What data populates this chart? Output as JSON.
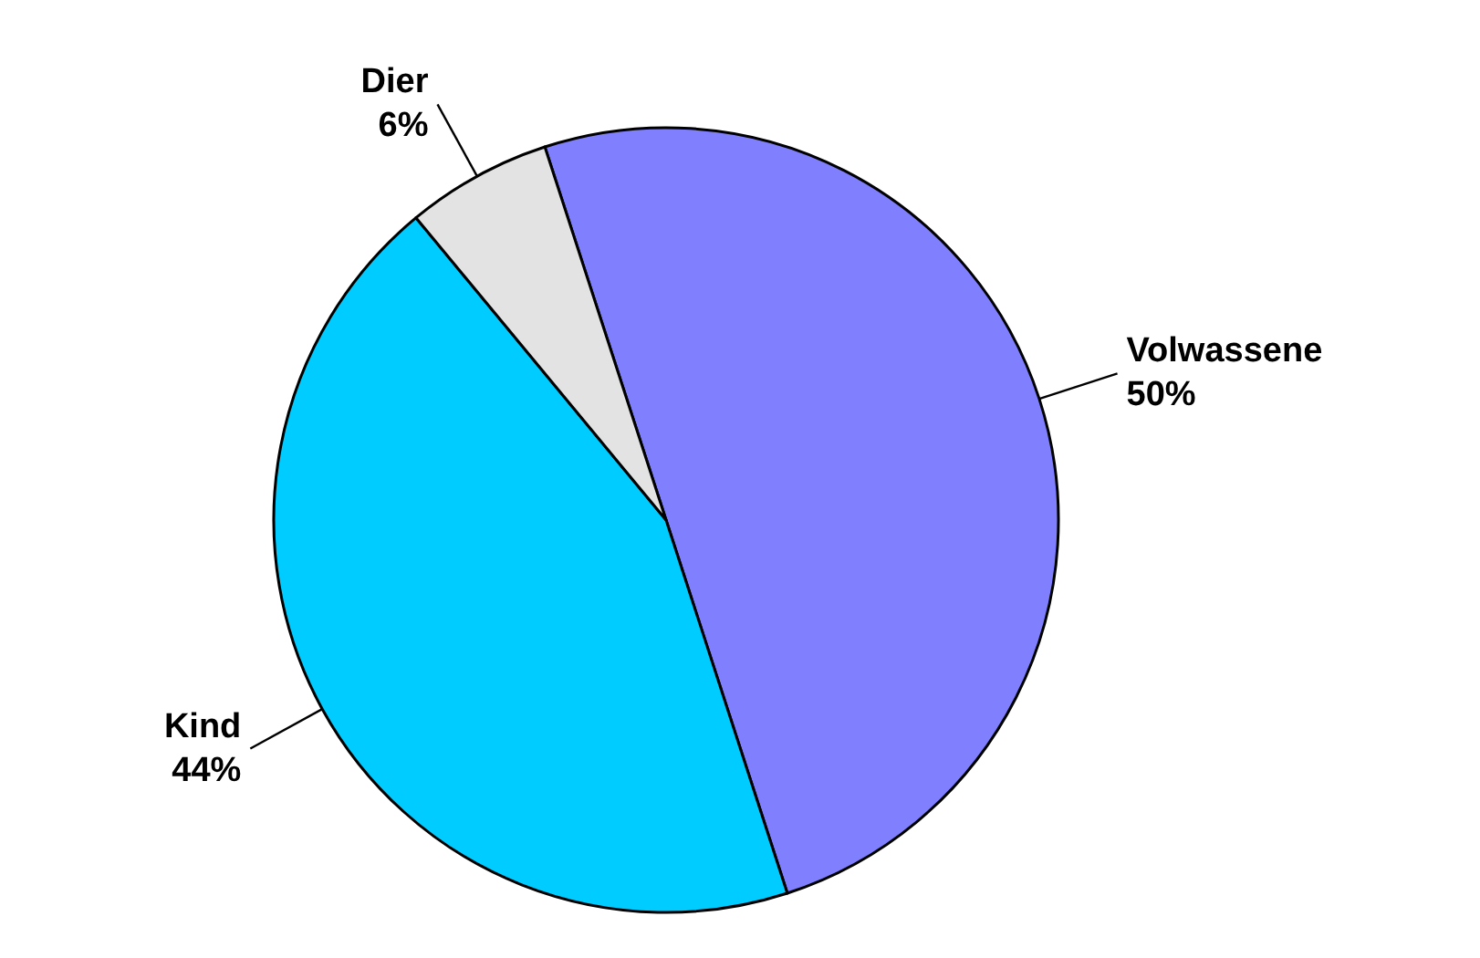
{
  "chart_data": {
    "type": "pie",
    "categories": [
      "Volwassene",
      "Kind",
      "Dier"
    ],
    "values": [
      50,
      44,
      6
    ],
    "colors": [
      "#8080ff",
      "#00ccff",
      "#e3e3e3"
    ],
    "value_labels": [
      "50%",
      "44%",
      "6%"
    ],
    "legend": false
  }
}
